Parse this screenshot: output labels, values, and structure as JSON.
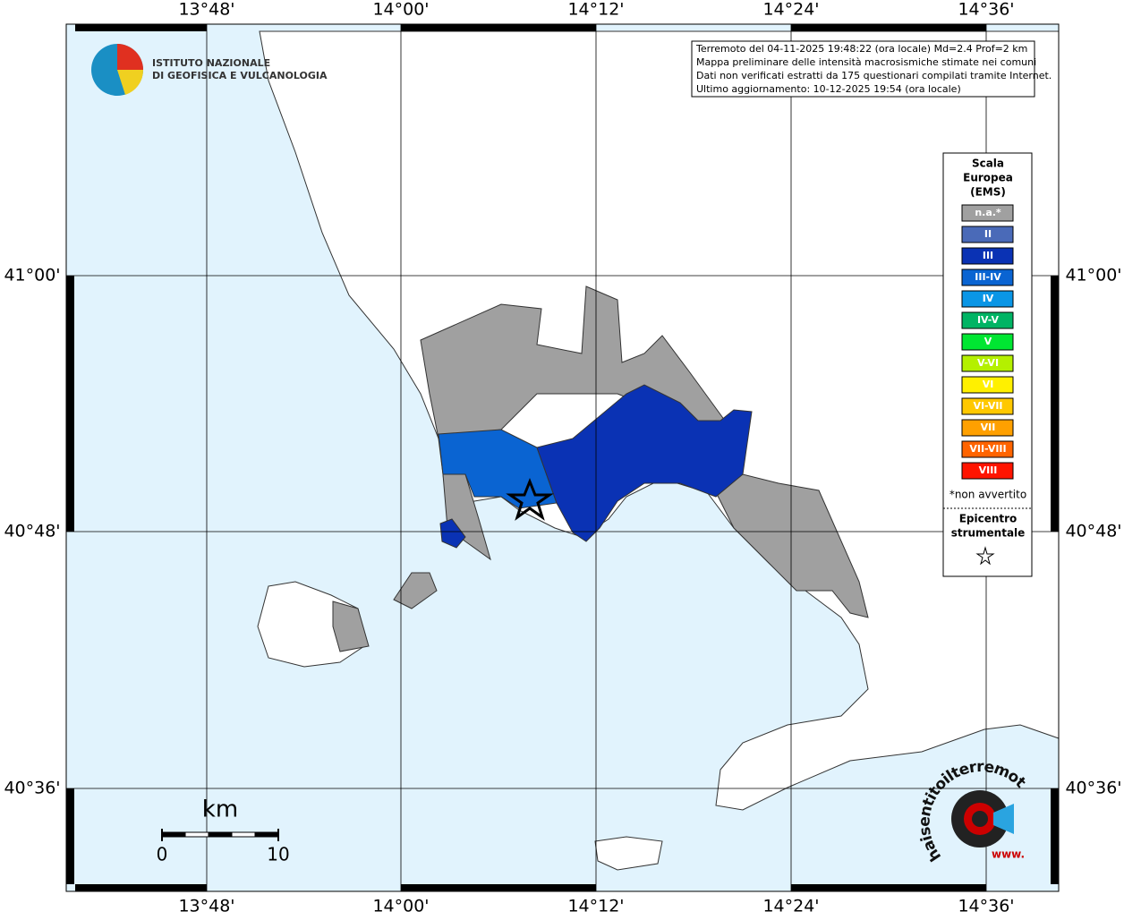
{
  "map": {
    "lon_labels": [
      "13°48'",
      "14°00'",
      "14°12'",
      "14°24'",
      "14°36'"
    ],
    "lat_labels": [
      "41°00'",
      "40°48'",
      "40°36'"
    ],
    "logo": {
      "line1": "ISTITUTO NAZIONALE",
      "line2": "DI GEOFISICA E VULCANOLOGIA"
    },
    "info": [
      "Terremoto del 04-11-2025 19:48:22 (ora locale) Md=2.4 Prof=2 km",
      "Mappa preliminare delle intensità macrosismiche stimate nei comuni",
      "Dati non verificati estratti da 175 questionari compilati tramite Internet.",
      "Ultimo aggiornamento: 10-12-2025 19:54 (ora locale)"
    ],
    "legend": {
      "title": [
        "Scala",
        "Europea",
        "(EMS)"
      ],
      "items": [
        {
          "label": "n.a.*",
          "color": "#a0a0a0"
        },
        {
          "label": "II",
          "color": "#4a6ab8"
        },
        {
          "label": "III",
          "color": "#0a32b4"
        },
        {
          "label": "III-IV",
          "color": "#0a64d2"
        },
        {
          "label": "IV",
          "color": "#0a96e6"
        },
        {
          "label": "IV-V",
          "color": "#00b464"
        },
        {
          "label": "V",
          "color": "#00e632"
        },
        {
          "label": "V-VI",
          "color": "#b4f000"
        },
        {
          "label": "VI",
          "color": "#fff000"
        },
        {
          "label": "VI-VII",
          "color": "#ffc800"
        },
        {
          "label": "VII",
          "color": "#ffa000"
        },
        {
          "label": "VII-VIII",
          "color": "#ff6400"
        },
        {
          "label": "VIII",
          "color": "#ff1400"
        }
      ],
      "note": "*non avvertito",
      "epicenter": [
        "Epicentro",
        "strumentale"
      ]
    },
    "scale": {
      "unit": "km",
      "ticks": [
        0,
        10
      ]
    },
    "badge": {
      "text": "haisentitoilterremoto.it",
      "www": "www."
    }
  }
}
